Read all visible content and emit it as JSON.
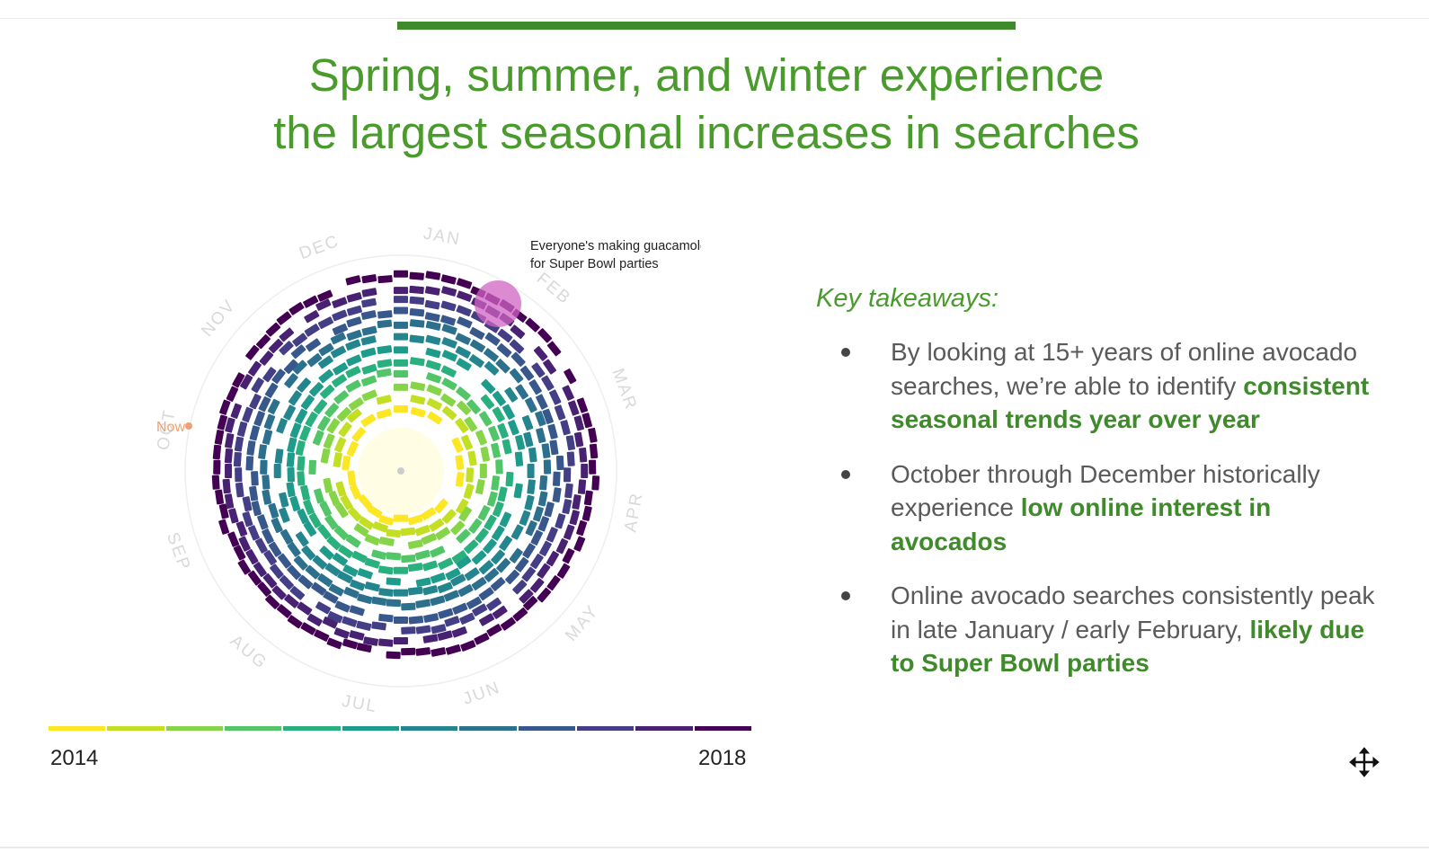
{
  "slide": {
    "title_line1": "Spring, summer, and winter experience",
    "title_line2": "the largest seasonal increases in searches",
    "accent_color": "#3f8a2a",
    "title_color": "#4a9a2e"
  },
  "chart_data": {
    "type": "radial-heatmap",
    "months": [
      "JAN",
      "FEB",
      "MAR",
      "APR",
      "MAY",
      "JUN",
      "JUL",
      "AUG",
      "SEP",
      "OCT",
      "NOV",
      "DEC"
    ],
    "annotation": {
      "line1": "Everyone's making guacamole",
      "line2": "for Super Bowl parties",
      "month": "FEB",
      "color": "#d063c3"
    },
    "now_label": "Now",
    "now_color": "#f0a070",
    "legend": {
      "start": "2014",
      "end": "2018",
      "colors": [
        "#fde725",
        "#c2df23",
        "#86d549",
        "#52c569",
        "#2ab07f",
        "#1e9b8a",
        "#25858e",
        "#2d708e",
        "#38588c",
        "#433e85",
        "#482173",
        "#440154"
      ]
    }
  },
  "takeaways": {
    "heading": "Key takeaways:",
    "items": [
      {
        "text": "By looking at 15+ years of online avocado searches, we’re able to identify ",
        "highlight": "consistent seasonal trends year over year"
      },
      {
        "text": "October through December historically experience ",
        "highlight": "low online interest in avocados"
      },
      {
        "text": "Online avocado searches consistently peak in late January / early February, ",
        "highlight": "likely due to Super Bowl parties"
      }
    ]
  },
  "icons": {
    "move": "move-icon"
  }
}
